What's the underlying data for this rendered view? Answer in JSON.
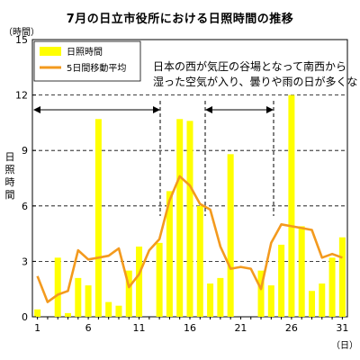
{
  "chart_data": {
    "type": "bar+line",
    "title": "7月の日立市役所における日照時間の推移",
    "ylabel": "日照時間",
    "yunit": "（時間）",
    "xunit": "（日）",
    "ylim": [
      0,
      15
    ],
    "yticks": [
      0,
      3,
      6,
      9,
      12,
      15
    ],
    "xticks": [
      1,
      6,
      11,
      16,
      21,
      26,
      31
    ],
    "days": [
      1,
      2,
      3,
      4,
      5,
      6,
      7,
      8,
      9,
      10,
      11,
      12,
      13,
      14,
      15,
      16,
      17,
      18,
      19,
      20,
      21,
      22,
      23,
      24,
      25,
      26,
      27,
      28,
      29,
      30,
      31
    ],
    "series": [
      {
        "name": "日照時間",
        "kind": "bar",
        "color": "#ffff00",
        "values": [
          0.4,
          0.0,
          3.2,
          0.2,
          2.1,
          1.7,
          10.7,
          0.8,
          0.6,
          2.5,
          3.8,
          0.0,
          4.0,
          6.8,
          10.7,
          10.6,
          6.0,
          1.8,
          2.1,
          8.8,
          0.0,
          0.0,
          2.5,
          1.7,
          3.9,
          12.0,
          4.9,
          1.4,
          1.8,
          3.2,
          4.3
        ]
      },
      {
        "name": "5日間移動平均",
        "kind": "line",
        "color": "#f39a1e",
        "values": [
          2.2,
          0.8,
          1.2,
          1.4,
          3.6,
          3.1,
          3.2,
          3.3,
          3.7,
          1.6,
          2.3,
          3.6,
          4.2,
          6.3,
          7.6,
          7.1,
          6.1,
          5.8,
          3.8,
          2.6,
          2.7,
          2.6,
          1.5,
          4.0,
          5.0,
          4.9,
          4.8,
          4.7,
          3.2,
          3.4,
          3.2
        ]
      }
    ],
    "annotation": {
      "line1": "日本の西が気圧の谷場となって南西から",
      "line2": "湿った空気が入り、曇りや雨の日が多くな"
    },
    "grid": "horizontal dashed",
    "legend": "top-left"
  }
}
